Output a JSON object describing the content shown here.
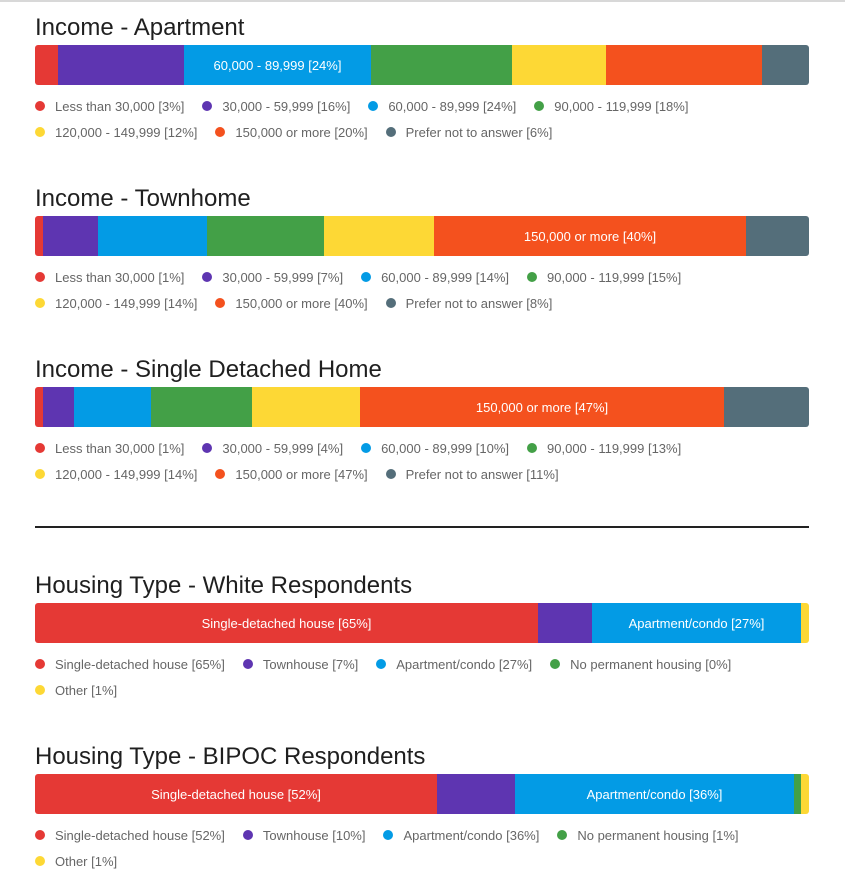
{
  "colors": [
    "#e53935",
    "#5e35b1",
    "#039be5",
    "#43a047",
    "#fdd835",
    "#f4511e",
    "#546e7a"
  ],
  "chart_data": [
    {
      "type": "bar",
      "title": "Income - Apartment",
      "stacked": true,
      "orientation": "horizontal",
      "series": [
        {
          "name": "Less than 30,000",
          "value": 3,
          "label": "Less than 30,000 [3%]"
        },
        {
          "name": "30,000 - 59,999",
          "value": 16,
          "label": "30,000 - 59,999 [16%]"
        },
        {
          "name": "60,000 - 89,999",
          "value": 24,
          "label": "60,000 - 89,999 [24%]"
        },
        {
          "name": "90,000 - 119,999",
          "value": 18,
          "label": "90,000 - 119,999 [18%]"
        },
        {
          "name": "120,000 - 149,999",
          "value": 12,
          "label": "120,000 - 149,999 [12%]"
        },
        {
          "name": "150,000 or more",
          "value": 20,
          "label": "150,000 or more [20%]"
        },
        {
          "name": "Prefer not to answer",
          "value": 6,
          "label": "Prefer not to answer [6%]"
        }
      ],
      "bar_labels": [
        2
      ]
    },
    {
      "type": "bar",
      "title": "Income - Townhome",
      "stacked": true,
      "orientation": "horizontal",
      "series": [
        {
          "name": "Less than 30,000",
          "value": 1,
          "label": "Less than 30,000 [1%]"
        },
        {
          "name": "30,000 - 59,999",
          "value": 7,
          "label": "30,000 - 59,999 [7%]"
        },
        {
          "name": "60,000 - 89,999",
          "value": 14,
          "label": "60,000 - 89,999 [14%]"
        },
        {
          "name": "90,000 - 119,999",
          "value": 15,
          "label": "90,000 - 119,999 [15%]"
        },
        {
          "name": "120,000 - 149,999",
          "value": 14,
          "label": "120,000 - 149,999 [14%]"
        },
        {
          "name": "150,000 or more",
          "value": 40,
          "label": "150,000 or more [40%]"
        },
        {
          "name": "Prefer not to answer",
          "value": 8,
          "label": "Prefer not to answer [8%]"
        }
      ],
      "bar_labels": [
        5
      ]
    },
    {
      "type": "bar",
      "title": "Income - Single Detached Home",
      "stacked": true,
      "orientation": "horizontal",
      "series": [
        {
          "name": "Less than 30,000",
          "value": 1,
          "label": "Less than 30,000 [1%]"
        },
        {
          "name": "30,000 - 59,999",
          "value": 4,
          "label": "30,000 - 59,999 [4%]"
        },
        {
          "name": "60,000 - 89,999",
          "value": 10,
          "label": "60,000 - 89,999 [10%]"
        },
        {
          "name": "90,000 - 119,999",
          "value": 13,
          "label": "90,000 - 119,999 [13%]"
        },
        {
          "name": "120,000 - 149,999",
          "value": 14,
          "label": "120,000 - 149,999 [14%]"
        },
        {
          "name": "150,000 or more",
          "value": 47,
          "label": "150,000 or more [47%]"
        },
        {
          "name": "Prefer not to answer",
          "value": 11,
          "label": "Prefer not to answer [11%]"
        }
      ],
      "bar_labels": [
        5
      ]
    },
    {
      "type": "bar",
      "title": "Housing Type - White Respondents",
      "stacked": true,
      "orientation": "horizontal",
      "series": [
        {
          "name": "Single-detached house",
          "value": 65,
          "label": "Single-detached house [65%]"
        },
        {
          "name": "Townhouse",
          "value": 7,
          "label": "Townhouse [7%]"
        },
        {
          "name": "Apartment/condo",
          "value": 27,
          "label": "Apartment/condo [27%]"
        },
        {
          "name": "No permanent housing",
          "value": 0,
          "label": "No permanent housing [0%]"
        },
        {
          "name": "Other",
          "value": 1,
          "label": "Other [1%]"
        }
      ],
      "bar_labels": [
        0,
        2
      ]
    },
    {
      "type": "bar",
      "title": "Housing Type - BIPOC Respondents",
      "stacked": true,
      "orientation": "horizontal",
      "series": [
        {
          "name": "Single-detached house",
          "value": 52,
          "label": "Single-detached house [52%]"
        },
        {
          "name": "Townhouse",
          "value": 10,
          "label": "Townhouse [10%]"
        },
        {
          "name": "Apartment/condo",
          "value": 36,
          "label": "Apartment/condo [36%]"
        },
        {
          "name": "No permanent housing",
          "value": 1,
          "label": "No permanent housing [1%]"
        },
        {
          "name": "Other",
          "value": 1,
          "label": "Other [1%]"
        }
      ],
      "bar_labels": [
        0,
        2
      ]
    }
  ]
}
